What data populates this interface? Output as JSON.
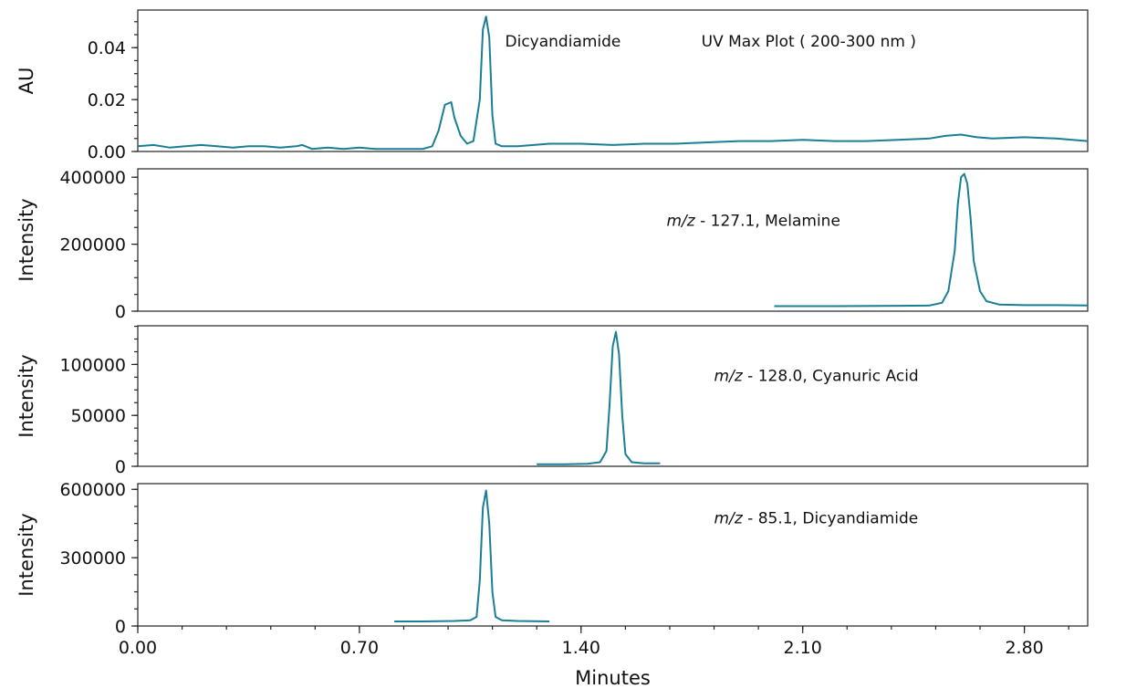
{
  "chart_data": {
    "type": "line",
    "xlabel": "Minutes",
    "x_ticks": [
      "0.00",
      "0.70",
      "1.40",
      "2.10",
      "2.80"
    ],
    "xlim": [
      0,
      3.0
    ],
    "line_color": "#1a7f95",
    "panels": [
      {
        "ylabel": "AU",
        "ylim": [
          0,
          0.0545
        ],
        "y_ticks": [
          {
            "value": 0,
            "label": "0.00"
          },
          {
            "value": 0.02,
            "label": "0.02"
          },
          {
            "value": 0.04,
            "label": "0.04"
          }
        ],
        "annotations": [
          {
            "text": "Dicyandiamide",
            "x": 1.16,
            "y": 0.0405
          },
          {
            "text": "UV Max Plot ( 200-300 nm )",
            "x": 1.78,
            "y": 0.0405
          }
        ],
        "series": [
          {
            "x": [
              0.0,
              0.05,
              0.1,
              0.15,
              0.2,
              0.25,
              0.3,
              0.35,
              0.4,
              0.45,
              0.5,
              0.52,
              0.55,
              0.6,
              0.65,
              0.7,
              0.75,
              0.8,
              0.85,
              0.9,
              0.93,
              0.95,
              0.97,
              0.99,
              1.0,
              1.02,
              1.04,
              1.06,
              1.08,
              1.09,
              1.1,
              1.11,
              1.12,
              1.13,
              1.15,
              1.2,
              1.3,
              1.4,
              1.5,
              1.6,
              1.7,
              1.8,
              1.9,
              2.0,
              2.1,
              2.2,
              2.3,
              2.4,
              2.5,
              2.55,
              2.6,
              2.65,
              2.7,
              2.8,
              2.9,
              3.0
            ],
            "y": [
              0.002,
              0.0025,
              0.0015,
              0.002,
              0.0025,
              0.002,
              0.0015,
              0.002,
              0.002,
              0.0015,
              0.002,
              0.0025,
              0.001,
              0.0015,
              0.001,
              0.0015,
              0.001,
              0.001,
              0.001,
              0.001,
              0.002,
              0.008,
              0.018,
              0.019,
              0.013,
              0.006,
              0.003,
              0.004,
              0.02,
              0.047,
              0.052,
              0.044,
              0.014,
              0.003,
              0.002,
              0.002,
              0.003,
              0.003,
              0.0025,
              0.003,
              0.003,
              0.0035,
              0.004,
              0.004,
              0.0045,
              0.004,
              0.004,
              0.0045,
              0.005,
              0.006,
              0.0065,
              0.0055,
              0.005,
              0.0055,
              0.005,
              0.004
            ]
          }
        ]
      },
      {
        "ylabel": "Intensity",
        "ylim": [
          0,
          425000
        ],
        "y_ticks": [
          {
            "value": 0,
            "label": "0"
          },
          {
            "value": 200000,
            "label": "200000"
          },
          {
            "value": 400000,
            "label": "400000"
          }
        ],
        "annotations": [
          {
            "text_italic": "m/z",
            "text": " - 127.1, Melamine",
            "x": 1.67,
            "y": 255000
          }
        ],
        "series": [
          {
            "x": [
              2.01,
              2.2,
              2.4,
              2.5,
              2.54,
              2.56,
              2.58,
              2.59,
              2.6,
              2.61,
              2.62,
              2.63,
              2.64,
              2.66,
              2.68,
              2.72,
              2.8,
              2.9,
              3.0
            ],
            "y": [
              15000,
              15000,
              16000,
              17000,
              25000,
              60000,
              180000,
              320000,
              400000,
              410000,
              380000,
              280000,
              150000,
              60000,
              30000,
              20000,
              18000,
              18000,
              17000
            ]
          }
        ]
      },
      {
        "ylabel": "Intensity",
        "ylim": [
          0,
          138000
        ],
        "y_ticks": [
          {
            "value": 0,
            "label": "0"
          },
          {
            "value": 50000,
            "label": "50000"
          },
          {
            "value": 100000,
            "label": "100000"
          }
        ],
        "annotations": [
          {
            "text_italic": "m/z",
            "text": " -  128.0, Cyanuric Acid",
            "x": 1.82,
            "y": 84000
          }
        ],
        "series": [
          {
            "x": [
              1.26,
              1.35,
              1.42,
              1.46,
              1.48,
              1.49,
              1.5,
              1.51,
              1.52,
              1.53,
              1.54,
              1.56,
              1.6,
              1.65
            ],
            "y": [
              2000,
              2000,
              2500,
              4000,
              15000,
              60000,
              118000,
              132000,
              110000,
              50000,
              12000,
              4000,
              3000,
              3000
            ]
          }
        ]
      },
      {
        "ylabel": "Intensity",
        "ylim": [
          0,
          625000
        ],
        "y_ticks": [
          {
            "value": 0,
            "label": "0"
          },
          {
            "value": 300000,
            "label": "300000"
          },
          {
            "value": 600000,
            "label": "600000"
          }
        ],
        "annotations": [
          {
            "text_italic": "m/z",
            "text": " - 85.1, Dicyandiamide",
            "x": 1.82,
            "y": 450000
          }
        ],
        "series": [
          {
            "x": [
              0.81,
              0.9,
              1.0,
              1.05,
              1.07,
              1.08,
              1.09,
              1.1,
              1.11,
              1.12,
              1.13,
              1.15,
              1.2,
              1.3
            ],
            "y": [
              20000,
              20000,
              22000,
              25000,
              40000,
              200000,
              520000,
              595000,
              450000,
              150000,
              40000,
              25000,
              22000,
              20000
            ]
          }
        ]
      }
    ]
  }
}
